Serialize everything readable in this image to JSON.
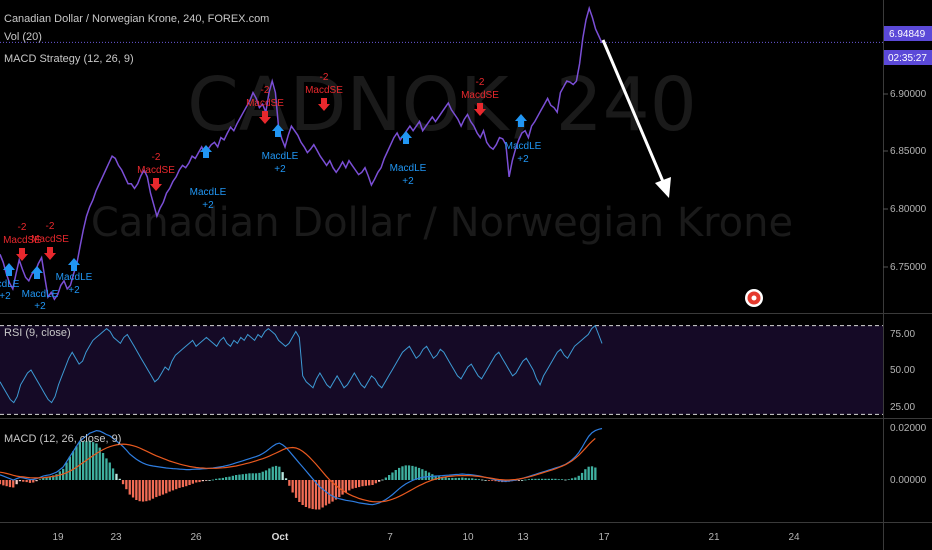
{
  "header": {
    "title": "Canadian Dollar / Norwegian Krone, 240, FOREX.com",
    "vol": "Vol (20)",
    "strategy": "MACD Strategy (12, 26, 9)"
  },
  "watermark": {
    "symbol": "CADNOK, 240",
    "name": "Canadian Dollar / Norwegian Krone"
  },
  "price_badge": {
    "value": "6.94849",
    "countdown": "02:35:27"
  },
  "price_axis": [
    "6.90000",
    "6.85000",
    "6.80000",
    "6.75000"
  ],
  "rsi": {
    "label": "RSI (9, close)",
    "ticks": [
      "75.00",
      "50.00",
      "25.00"
    ]
  },
  "macd": {
    "label": "MACD (12, 26, close, 9)",
    "ticks": [
      "0.02000",
      "0.00000"
    ]
  },
  "dates": [
    "19",
    "23",
    "26",
    "Oct",
    "7",
    "10",
    "13",
    "17",
    "21",
    "24"
  ],
  "signals": {
    "short": [
      {
        "l1": "-2",
        "l2": "MacdSE"
      },
      {
        "l1": "-2",
        "l2": "MacdSE"
      },
      {
        "l1": "-2",
        "l2": "MacdSE"
      },
      {
        "l1": "-2",
        "l2": "MacdSE"
      },
      {
        "l1": "-2",
        "l2": "MacdSE"
      },
      {
        "l1": "-2",
        "l2": "MacdSE"
      }
    ],
    "long": [
      {
        "l1": "cdLE",
        "l2": "+2"
      },
      {
        "l1": "MacdLE",
        "l2": "+2"
      },
      {
        "l1": "MacdLE",
        "l2": "+2"
      },
      {
        "l1": "MacdLE",
        "l2": "+2"
      },
      {
        "l1": "MacdLE",
        "l2": "+2"
      },
      {
        "l1": "MacdLE",
        "l2": "+2"
      },
      {
        "l1": "MacdLE",
        "l2": "+2"
      }
    ]
  },
  "colors": {
    "price_line": "#7b4fd6",
    "rsi_line": "#3d9ad4",
    "rsi_band": "#150a26",
    "macd_line": "#2e7de0",
    "signal_line": "#e8591f",
    "hist_pos": "#3fb0a0",
    "hist_neg": "#f26c55",
    "short_signal": "#e8282d",
    "long_signal": "#2196f3",
    "badge": "#5b49d8"
  },
  "chart_data": {
    "type": "line",
    "symbol": "CADNOK",
    "timeframe": "240",
    "ylim": [
      6.715,
      6.98
    ],
    "last_price": 6.94849,
    "price": [
      6.765,
      6.758,
      6.748,
      6.74,
      6.735,
      6.748,
      6.76,
      6.752,
      6.745,
      6.742,
      6.748,
      6.75,
      6.757,
      6.762,
      6.745,
      6.728,
      6.732,
      6.726,
      6.73,
      6.738,
      6.742,
      6.735,
      6.738,
      6.748,
      6.757,
      6.772,
      6.786,
      6.798,
      6.806,
      6.812,
      6.82,
      6.826,
      6.832,
      6.838,
      6.844,
      6.85,
      6.848,
      6.842,
      6.838,
      6.832,
      6.826,
      6.826,
      6.822,
      6.826,
      6.833,
      6.838,
      6.832,
      6.818,
      6.808,
      6.798,
      6.805,
      6.81,
      6.818,
      6.822,
      6.828,
      6.832,
      6.838,
      6.842,
      6.84,
      6.844,
      6.85,
      6.848,
      6.853,
      6.858,
      6.852,
      6.856,
      6.86,
      6.862,
      6.858,
      6.866,
      6.864,
      6.87,
      6.875,
      6.872,
      6.878,
      6.883,
      6.888,
      6.893,
      6.898,
      6.905,
      6.9,
      6.892,
      6.895,
      6.888,
      6.905,
      6.915,
      6.905,
      6.875,
      6.865,
      6.858,
      6.868,
      6.876,
      6.872,
      6.868,
      6.862,
      6.858,
      6.853,
      6.856,
      6.86,
      6.855,
      6.85,
      6.846,
      6.842,
      6.846,
      6.84,
      6.836,
      6.84,
      6.845,
      6.84,
      6.846,
      6.842,
      6.838,
      6.834,
      6.836,
      6.84,
      6.833,
      6.825,
      6.83,
      6.836,
      6.84,
      6.848,
      6.854,
      6.86,
      6.866,
      6.87,
      6.864,
      6.868,
      6.872,
      6.876,
      6.872,
      6.876,
      6.88,
      6.872,
      6.876,
      6.88,
      6.884,
      6.88,
      6.884,
      6.888,
      6.892,
      6.896,
      6.89,
      6.886,
      6.882,
      6.876,
      6.882,
      6.886,
      6.88,
      6.876,
      6.87,
      6.866,
      6.872,
      6.862,
      6.858,
      6.856,
      6.86,
      6.866,
      6.865,
      6.86,
      6.832,
      6.846,
      6.856,
      6.864,
      6.87,
      6.872,
      6.866,
      6.876,
      6.88,
      6.885,
      6.89,
      6.895,
      6.9,
      6.894,
      6.892,
      6.888,
      6.905,
      6.91,
      6.915,
      6.914,
      6.912,
      6.915,
      6.93,
      6.952,
      6.968,
      6.978,
      6.97,
      6.96,
      6.954,
      6.948
    ],
    "rsi": [
      42,
      38,
      34,
      30,
      28,
      32,
      40,
      44,
      48,
      50,
      46,
      42,
      38,
      34,
      30,
      28,
      32,
      40,
      46,
      52,
      58,
      62,
      58,
      54,
      56,
      62,
      66,
      70,
      72,
      74,
      76,
      78,
      76,
      72,
      70,
      68,
      72,
      74,
      70,
      66,
      62,
      58,
      54,
      50,
      46,
      42,
      44,
      48,
      52,
      50,
      56,
      60,
      62,
      64,
      66,
      68,
      70,
      66,
      68,
      70,
      72,
      70,
      68,
      66,
      70,
      72,
      68,
      66,
      70,
      68,
      72,
      70,
      74,
      72,
      70,
      74,
      72,
      76,
      78,
      76,
      74,
      70,
      68,
      66,
      68,
      72,
      76,
      72,
      46,
      42,
      40,
      38,
      44,
      48,
      44,
      40,
      38,
      42,
      46,
      42,
      38,
      40,
      44,
      48,
      44,
      40,
      38,
      42,
      46,
      44,
      40,
      38,
      42,
      46,
      50,
      54,
      58,
      62,
      64,
      66,
      62,
      58,
      60,
      64,
      66,
      62,
      58,
      60,
      64,
      62,
      58,
      54,
      50,
      46,
      44,
      48,
      52,
      54,
      50,
      46,
      44,
      48,
      52,
      56,
      60,
      62,
      58,
      54,
      50,
      46,
      48,
      52,
      56,
      58,
      54,
      50,
      44,
      40,
      46,
      50,
      54,
      58,
      62,
      64,
      60,
      58,
      62,
      66,
      68,
      70,
      72,
      74,
      78,
      80,
      74,
      68
    ],
    "macd": [
      0.002,
      0.0015,
      0.001,
      0.0005,
      0.0,
      0.0005,
      0.001,
      0.0008,
      0.0005,
      0.0002,
      0.0002,
      0.0005,
      0.001,
      0.0015,
      0.0018,
      0.002,
      0.0025,
      0.003,
      0.004,
      0.005,
      0.007,
      0.009,
      0.011,
      0.013,
      0.015,
      0.016,
      0.017,
      0.018,
      0.0185,
      0.019,
      0.0188,
      0.0182,
      0.0175,
      0.017,
      0.016,
      0.015,
      0.014,
      0.0128,
      0.0115,
      0.01,
      0.009,
      0.008,
      0.0072,
      0.0065,
      0.006,
      0.0056,
      0.0054,
      0.0052,
      0.005,
      0.0048,
      0.0046,
      0.0045,
      0.0044,
      0.0043,
      0.0042,
      0.0041,
      0.004,
      0.004,
      0.0041,
      0.0042,
      0.0042,
      0.0043,
      0.0044,
      0.0045,
      0.0046,
      0.0048,
      0.005,
      0.0052,
      0.0055,
      0.0058,
      0.0062,
      0.0066,
      0.007,
      0.0074,
      0.0078,
      0.0082,
      0.0086,
      0.009,
      0.0095,
      0.0102,
      0.011,
      0.012,
      0.013,
      0.0138,
      0.0142,
      0.0135,
      0.0125,
      0.011,
      0.0095,
      0.008,
      0.0065,
      0.005,
      0.0035,
      0.002,
      0.0005,
      -0.001,
      -0.0025,
      -0.0035,
      -0.0045,
      -0.0055,
      -0.0062,
      -0.0068,
      -0.0072,
      -0.0075,
      -0.0078,
      -0.008,
      -0.0082,
      -0.0085,
      -0.0088,
      -0.009,
      -0.0092,
      -0.0094,
      -0.0095,
      -0.0092,
      -0.0088,
      -0.0082,
      -0.0075,
      -0.0066,
      -0.0056,
      -0.0045,
      -0.0034,
      -0.0024,
      -0.0015,
      -0.0008,
      -0.0002,
      0.0003,
      0.0007,
      0.001,
      0.0012,
      0.0013,
      0.0014,
      0.0015,
      0.0016,
      0.0017,
      0.0018,
      0.0019,
      0.002,
      0.0021,
      0.0022,
      0.0023,
      0.0022,
      0.0021,
      0.002,
      0.0018,
      0.0016,
      0.0013,
      0.001,
      0.0007,
      0.0004,
      0.0001,
      -0.0002,
      -0.0004,
      -0.0005,
      -0.0004,
      -0.0002,
      0.0,
      0.0003,
      0.0006,
      0.001,
      0.0014,
      0.0018,
      0.0022,
      0.0026,
      0.003,
      0.0034,
      0.0038,
      0.0042,
      0.0046,
      0.005,
      0.0055,
      0.006,
      0.0068,
      0.0078,
      0.009,
      0.0105,
      0.0125,
      0.0148,
      0.0168,
      0.0182,
      0.019,
      0.0195,
      0.0198
    ],
    "signal": [
      0.003,
      0.0028,
      0.0025,
      0.0022,
      0.0018,
      0.0015,
      0.0013,
      0.0012,
      0.001,
      0.0009,
      0.0008,
      0.0008,
      0.0008,
      0.0009,
      0.001,
      0.0012,
      0.0014,
      0.0016,
      0.0019,
      0.0023,
      0.0028,
      0.0034,
      0.0041,
      0.0049,
      0.0058,
      0.0067,
      0.0076,
      0.0085,
      0.0094,
      0.0102,
      0.011,
      0.0117,
      0.0123,
      0.0128,
      0.0132,
      0.0135,
      0.0137,
      0.0138,
      0.0137,
      0.0135,
      0.0132,
      0.0128,
      0.0123,
      0.0117,
      0.0111,
      0.0105,
      0.0099,
      0.0093,
      0.0088,
      0.0083,
      0.0078,
      0.0073,
      0.0069,
      0.0065,
      0.0061,
      0.0058,
      0.0055,
      0.0052,
      0.005,
      0.0048,
      0.0047,
      0.0046,
      0.0045,
      0.0045,
      0.0045,
      0.0045,
      0.0046,
      0.0047,
      0.0048,
      0.005,
      0.0052,
      0.0054,
      0.0057,
      0.006,
      0.0063,
      0.0066,
      0.007,
      0.0074,
      0.0078,
      0.0082,
      0.0087,
      0.0092,
      0.0098,
      0.0104,
      0.011,
      0.0116,
      0.0121,
      0.0124,
      0.0125,
      0.0123,
      0.0118,
      0.011,
      0.01,
      0.0088,
      0.0075,
      0.0061,
      0.0046,
      0.0031,
      0.0016,
      0.0002,
      -0.001,
      -0.0021,
      -0.0031,
      -0.004,
      -0.0048,
      -0.0055,
      -0.0061,
      -0.0066,
      -0.0071,
      -0.0075,
      -0.0078,
      -0.0081,
      -0.0083,
      -0.0084,
      -0.0084,
      -0.0083,
      -0.0081,
      -0.0078,
      -0.0074,
      -0.0069,
      -0.0063,
      -0.0057,
      -0.005,
      -0.0043,
      -0.0036,
      -0.0029,
      -0.0022,
      -0.0016,
      -0.001,
      -0.0005,
      0.0,
      0.0004,
      0.0007,
      0.001,
      0.0012,
      0.0014,
      0.0015,
      0.0016,
      0.0017,
      0.0017,
      0.0017,
      0.0017,
      0.0016,
      0.0015,
      0.0014,
      0.0012,
      0.001,
      0.0008,
      0.0006,
      0.0004,
      0.0002,
      0.0001,
      0.0,
      0.0,
      0.0001,
      0.0002,
      0.0004,
      0.0006,
      0.0009,
      0.0012,
      0.0015,
      0.0019,
      0.0023,
      0.0027,
      0.0031,
      0.0035,
      0.0039,
      0.0043,
      0.0048,
      0.0053,
      0.0059,
      0.0066,
      0.0074,
      0.0084,
      0.0095,
      0.0108,
      0.0122,
      0.0136,
      0.0149,
      0.016
    ]
  }
}
